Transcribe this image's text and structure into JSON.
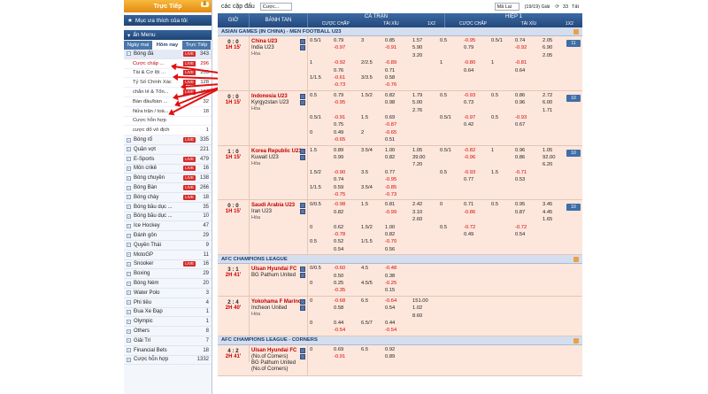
{
  "sidebar": {
    "live_label": "Trực Tiếp",
    "live_count": "8",
    "favorites_label": "Mục ưa thích của tôi",
    "menu_label": "ẩn Menu",
    "tabs": [
      "Ngày mai",
      "Hôm nay",
      "Trực Tiếp"
    ],
    "football_label": "Bóng đá",
    "football_count": "343",
    "football_live": "LIVE",
    "sub_items": [
      {
        "label": "Cược chấp ...",
        "live": "LIVE",
        "count": "296"
      },
      {
        "label": "Tài & Cơ lội ...",
        "live": "LIVE",
        "count": "253"
      },
      {
        "label": "Tỷ Số Chính Xác",
        "live": "LIVE",
        "count": "128"
      },
      {
        "label": "chẵn lẻ & Tổn...",
        "live": "LIVE",
        "count": "161"
      },
      {
        "label": "Bàn đầu/bàn ...",
        "live": "",
        "count": "32"
      },
      {
        "label": "Nửa trận / toà...",
        "live": "",
        "count": "18"
      },
      {
        "label": "Cược hỗn hợp",
        "live": "",
        "count": ""
      },
      {
        "label": "cược đổ vô địch",
        "live": "",
        "count": "1"
      }
    ],
    "sports": [
      {
        "label": "Bóng rổ",
        "live": "LIVE",
        "count": "335"
      },
      {
        "label": "Quần vợt",
        "live": "",
        "count": "221"
      },
      {
        "label": "E-Sports",
        "live": "LIVE",
        "count": "479"
      },
      {
        "label": "Môn crikê",
        "live": "LIVE",
        "count": "16"
      },
      {
        "label": "Bóng chuyền",
        "live": "LIVE",
        "count": "138"
      },
      {
        "label": "Bóng Bàn",
        "live": "LIVE",
        "count": "266"
      },
      {
        "label": "Bóng chày",
        "live": "LIVE",
        "count": "18"
      },
      {
        "label": "Bóng bầu dục ...",
        "live": "",
        "count": "35"
      },
      {
        "label": "Bóng bầu dục ...",
        "live": "",
        "count": "10"
      },
      {
        "label": "Ice Hockey",
        "live": "",
        "count": "47"
      },
      {
        "label": "Đánh gôn",
        "live": "",
        "count": "29"
      },
      {
        "label": "Quyền Thái",
        "live": "",
        "count": "9"
      },
      {
        "label": "MotoGP",
        "live": "",
        "count": "11"
      },
      {
        "label": "Snooker",
        "live": "LIVE",
        "count": "16"
      },
      {
        "label": "Boxing",
        "live": "",
        "count": "29"
      },
      {
        "label": "Bóng Ném",
        "live": "",
        "count": "20"
      },
      {
        "label": "Water Polo",
        "live": "",
        "count": "3"
      },
      {
        "label": "Phi tiêu",
        "live": "",
        "count": "4"
      },
      {
        "label": "Đua Xe Đạp",
        "live": "",
        "count": "1"
      },
      {
        "label": "Olympic",
        "live": "",
        "count": "1"
      },
      {
        "label": "Others",
        "live": "",
        "count": "8"
      },
      {
        "label": "Giải Trí",
        "live": "",
        "count": "7"
      },
      {
        "label": "Financial Bets",
        "live": "",
        "count": "18"
      },
      {
        "label": "Cược hỗn hợp",
        "live": "",
        "count": "1332"
      }
    ]
  },
  "toolbar": {
    "title": "các cặp đấu",
    "bet_type": "Cược...",
    "odds_type": "Mã Lai",
    "count": "(19/19) Giải",
    "refresh": "33",
    "right_label": "Tất"
  },
  "header": {
    "time": "GIỜ",
    "teams": "BÀNH TAN",
    "fulltime": "CẢ TRẬN",
    "half1": "HIỆP 1",
    "handicap": "CƯỢC CHẤP",
    "over_under": "TÀI XỈU",
    "onex2": "1X2"
  },
  "leagues": [
    {
      "name": "ASIAN GAMES (IN CHINA) - MEN FOOTBALL U23",
      "matches": [
        {
          "score": "0 : 0",
          "time": "1H 15'",
          "home": "China U23",
          "away": "India U23",
          "draw": "Hòa",
          "more": "11",
          "lines": [
            [
              "0.5/1",
              "0.79",
              "3",
              "0.85",
              "1.57",
              "0.5",
              "-0.95",
              "0.5/1",
              "0.74",
              "2.05"
            ],
            [
              "",
              "-0.97",
              "",
              "-0.91",
              "5.90",
              "",
              "0.79",
              "",
              "-0.92",
              "6.90"
            ],
            [
              "",
              "",
              "",
              "",
              "3.20",
              "",
              "",
              "",
              "",
              "2.05"
            ],
            [
              "1",
              "-0.92",
              "2/2.5",
              "-0.89",
              "",
              "1",
              "-0.80",
              "1",
              "-0.81",
              ""
            ],
            [
              "",
              "0.76",
              "",
              "0.71",
              "",
              "",
              "0.64",
              "",
              "0.64",
              ""
            ],
            [
              "1/1.5",
              "-0.61",
              "3/3.5",
              "0.58",
              "",
              "",
              "",
              "",
              "",
              ""
            ],
            [
              "",
              "-0.73",
              "",
              "-0.76",
              "",
              "",
              "",
              "",
              "",
              ""
            ]
          ]
        },
        {
          "score": "0 : 0",
          "time": "1H 15'",
          "home": "Indonesia U23",
          "away": "Kyrgyzstan U23",
          "draw": "Hòa",
          "more": "10",
          "lines": [
            [
              "0.5",
              "0.79",
              "1.5/2",
              "0.82",
              "1.79",
              "0.5",
              "-0.93",
              "0.5",
              "0.86",
              "2.72"
            ],
            [
              "",
              "-0.95",
              "",
              "0.98",
              "5.00",
              "",
              "0.73",
              "",
              "0.96",
              "6.00"
            ],
            [
              "",
              "",
              "",
              "",
              "2.76",
              "",
              "",
              "",
              "",
              "1.71"
            ],
            [
              "0.5/1",
              "-0.91",
              "1.5",
              "0.69",
              "",
              "0.5/1",
              "-0.97",
              "0.5",
              "-0.93",
              ""
            ],
            [
              "",
              "0.75",
              "",
              "-0.87",
              "",
              "",
              "0.42",
              "",
              "0.67",
              ""
            ],
            [
              "0",
              "0.49",
              "2",
              "-0.65",
              "",
              "",
              "",
              "",
              "",
              ""
            ],
            [
              "",
              "-0.65",
              "",
              "0.51",
              "",
              "",
              "",
              "",
              "",
              ""
            ]
          ]
        },
        {
          "score": "1 : 0",
          "time": "1H 15'",
          "home": "Korea Republic U23",
          "away": "Kuwait U23",
          "draw": "Hòa",
          "more": "10",
          "lines": [
            [
              "1.5",
              "0.89",
              "3.5/4",
              "1.00",
              "1.05",
              "0.5/1",
              "-0.82",
              "1",
              "0.96",
              "1.05"
            ],
            [
              "",
              "0.99",
              "",
              "0.82",
              "39.00",
              "",
              "-0.96",
              "",
              "0.86",
              "92.00"
            ],
            [
              "",
              "",
              "",
              "",
              "7.20",
              "",
              "",
              "",
              "",
              "6.20"
            ],
            [
              "1.5/2",
              "-0.90",
              "3.5",
              "0.77",
              "",
              "0.5",
              "-0.93",
              "1.5",
              "-0.71",
              ""
            ],
            [
              "",
              "0.74",
              "",
              "-0.95",
              "",
              "",
              "0.77",
              "",
              "0.53",
              ""
            ],
            [
              "1/1.5",
              "0.59",
              "3.5/4",
              "-0.85",
              "",
              "",
              "",
              "",
              "",
              ""
            ],
            [
              "",
              "-0.75",
              "",
              "-0.73",
              "",
              "",
              "",
              "",
              "",
              ""
            ]
          ]
        },
        {
          "score": "0 : 0",
          "time": "1H 15'",
          "home": "Saudi Arabia U23",
          "away": "Iran U23",
          "draw": "Hòa",
          "more": "10",
          "lines": [
            [
              "0/0.5",
              "-0.98",
              "1.5",
              "0.81",
              "2.42",
              "0",
              "0.71",
              "0.5",
              "0.95",
              "3.45"
            ],
            [
              "",
              "0.82",
              "",
              "-0.99",
              "3.10",
              "",
              "-0.86",
              "",
              "0.87",
              "4.45"
            ],
            [
              "",
              "",
              "",
              "",
              "2.60",
              "",
              "",
              "",
              "",
              "1.65"
            ],
            [
              "0",
              "0.62",
              "1.5/2",
              "1.00",
              "",
              "0.5",
              "-0.72",
              "",
              "-0.72",
              ""
            ],
            [
              "",
              "-0.78",
              "",
              "0.82",
              "",
              "",
              "0.49",
              "",
              "0.54",
              ""
            ],
            [
              "0.5",
              "0.52",
              "1/1.5",
              "-0.70",
              "",
              "",
              "",
              "",
              "",
              ""
            ],
            [
              "",
              "0.54",
              "",
              "0.56",
              "",
              "",
              "",
              "",
              "",
              ""
            ]
          ]
        }
      ]
    },
    {
      "name": "AFC CHAMPIONS LEAGUE",
      "matches": [
        {
          "score": "3 : 1",
          "time": "2H 41'",
          "home": "Ulsan Hyundai FC",
          "away": "BG Pathum United",
          "draw": "",
          "more": "",
          "lines": [
            [
              "0/0.5",
              "-0.60",
              "4.5",
              "-0.48",
              "",
              "",
              "",
              "",
              "",
              ""
            ],
            [
              "",
              "0.50",
              "",
              "0.38",
              "",
              "",
              "",
              "",
              "",
              ""
            ],
            [
              "0",
              "0.25",
              "4.5/5",
              "-0.25",
              "",
              "",
              "",
              "",
              "",
              ""
            ],
            [
              "",
              "-0.35",
              "",
              "0.15",
              "",
              "",
              "",
              "",
              "",
              ""
            ]
          ]
        },
        {
          "score": "2 : 4",
          "time": "2H 40'",
          "home": "Yokohama F Marinos",
          "away": "Incheon United",
          "draw": "Hòa",
          "more": "",
          "lines": [
            [
              "0",
              "-0.68",
              "6.5",
              "-0.64",
              "151.00",
              "",
              "",
              "",
              "",
              ""
            ],
            [
              "",
              "0.58",
              "",
              "0.54",
              "1.02",
              "",
              "",
              "",
              "",
              ""
            ],
            [
              "",
              "",
              "",
              "",
              "8.60",
              "",
              "",
              "",
              "",
              ""
            ],
            [
              "0",
              "0.44",
              "6.5/7",
              "0.44",
              "",
              "",
              "",
              "",
              "",
              ""
            ],
            [
              "",
              "-0.54",
              "",
              "-0.54",
              "",
              "",
              "",
              "",
              "",
              ""
            ]
          ]
        }
      ]
    },
    {
      "name": "AFC CHAMPIONS LEAGUE - CORNERS",
      "matches": [
        {
          "score": "4 : 2",
          "time": "2H 41'",
          "home": "Ulsan Hyundai FC",
          "away": "(No.of Corners)",
          "home2": "BG Pathum United",
          "away2": "(No.of Corners)",
          "draw": "",
          "more": "",
          "lines": [
            [
              "0",
              "0.69",
              "6.5",
              "0.92",
              "",
              "",
              "",
              "",
              "",
              ""
            ],
            [
              "",
              "-0.91",
              "",
              "0.89",
              "",
              "",
              "",
              "",
              "",
              ""
            ]
          ]
        }
      ]
    }
  ]
}
